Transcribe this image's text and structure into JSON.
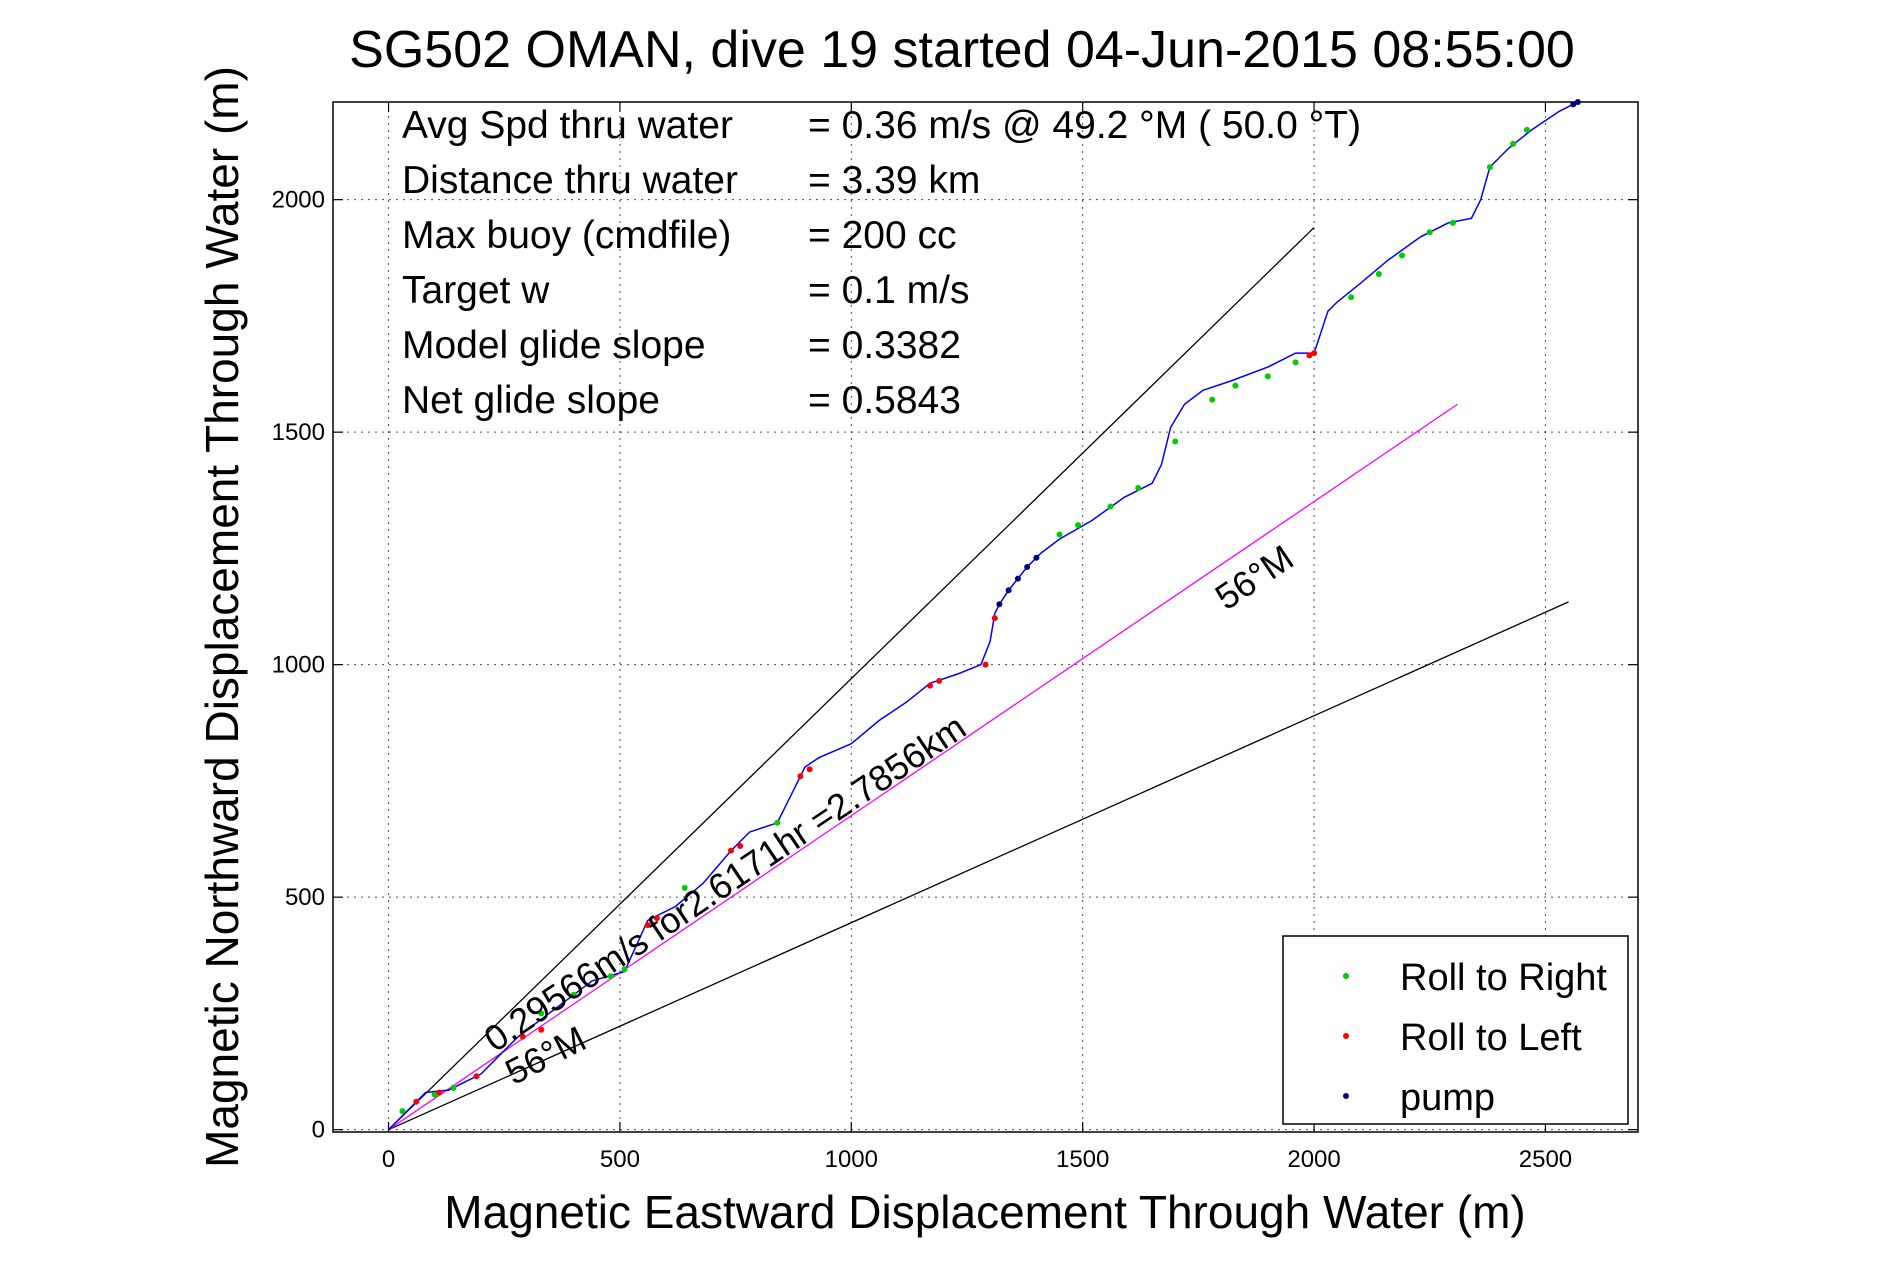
{
  "chart_data": {
    "type": "line",
    "title": "SG502 OMAN, dive 19 started 04-Jun-2015 08:55:00",
    "xlabel": "Magnetic Eastward Displacement Through Water (m)",
    "ylabel": "Magnetic Northward Displacement Through Water (m)",
    "xlim": [
      -120,
      2700
    ],
    "ylim": [
      -5,
      2210
    ],
    "xticks": [
      0,
      500,
      1000,
      1500,
      2000,
      2500
    ],
    "yticks": [
      0,
      500,
      1000,
      1500,
      2000
    ],
    "grid": true,
    "info_lines": [
      {
        "label": "Avg Spd thru water",
        "value": "=  0.36 m/s @  49.2 °M ( 50.0 °T)"
      },
      {
        "label": "Distance thru water",
        "value": "=  3.39 km"
      },
      {
        "label": "Max buoy (cmdfile)",
        "value": "= 200 cc"
      },
      {
        "label": "Target w",
        "value": "= 0.1 m/s"
      },
      {
        "label": "Model glide slope",
        "value": "= 0.3382"
      },
      {
        "label": "Net glide slope",
        "value": "= 0.5843"
      }
    ],
    "annotations": [
      {
        "text": "0.29566m/s for2.6171hr =2.7856km",
        "x": 230,
        "y": 165,
        "rotation_deg": 34
      },
      {
        "text": "56°M",
        "x": 270,
        "y": 95,
        "rotation_deg": 27
      },
      {
        "text": "56°M",
        "x": 1810,
        "y": 1115,
        "rotation_deg": 34
      }
    ],
    "guide_lines": [
      {
        "name": "upper-bound",
        "color": "#000000",
        "x": [
          0,
          2000
        ],
        "y": [
          0,
          1940
        ]
      },
      {
        "name": "lower-bound",
        "color": "#000000",
        "x": [
          0,
          2550
        ],
        "y": [
          0,
          1135
        ]
      },
      {
        "name": "current-heading",
        "color": "#ff00ff",
        "x": [
          0,
          2310
        ],
        "y": [
          0,
          1560
        ]
      }
    ],
    "track": {
      "color": "#0000ff",
      "x": [
        0,
        20,
        50,
        80,
        130,
        200,
        280,
        360,
        440,
        510,
        560,
        620,
        680,
        740,
        780,
        840,
        880,
        900,
        930,
        1000,
        1060,
        1120,
        1170,
        1230,
        1280,
        1300,
        1310,
        1320,
        1340,
        1380,
        1400,
        1410,
        1450,
        1520,
        1590,
        1650,
        1670,
        1690,
        1720,
        1760,
        1820,
        1900,
        1960,
        2000,
        2010,
        2030,
        2050,
        2100,
        2160,
        2230,
        2290,
        2340,
        2360,
        2380,
        2420,
        2470,
        2530,
        2570
      ],
      "y": [
        0,
        20,
        50,
        80,
        85,
        120,
        200,
        260,
        320,
        340,
        450,
        480,
        530,
        600,
        640,
        660,
        740,
        780,
        800,
        830,
        880,
        920,
        960,
        980,
        1000,
        1050,
        1110,
        1130,
        1160,
        1210,
        1230,
        1240,
        1270,
        1310,
        1360,
        1390,
        1430,
        1510,
        1560,
        1590,
        1610,
        1640,
        1670,
        1670,
        1700,
        1760,
        1780,
        1820,
        1870,
        1920,
        1950,
        1960,
        2000,
        2070,
        2110,
        2150,
        2190,
        2210
      ]
    },
    "series": [
      {
        "name": "Roll to Right",
        "color": "#00cc00",
        "x": [
          30,
          100,
          140,
          330,
          400,
          480,
          510,
          640,
          840,
          1450,
          1490,
          1560,
          1620,
          1700,
          1780,
          1830,
          1900,
          1960,
          2080,
          2140,
          2190,
          2250,
          2300,
          2380,
          2430,
          2460
        ],
        "y": [
          40,
          75,
          90,
          250,
          290,
          330,
          345,
          520,
          660,
          1280,
          1300,
          1340,
          1380,
          1480,
          1570,
          1600,
          1620,
          1650,
          1790,
          1840,
          1880,
          1930,
          1950,
          2070,
          2120,
          2150
        ]
      },
      {
        "name": "Roll to Left",
        "color": "#ff0000",
        "x": [
          60,
          110,
          190,
          290,
          330,
          560,
          580,
          740,
          760,
          890,
          910,
          1170,
          1190,
          1290,
          1310,
          1990,
          2000
        ],
        "y": [
          60,
          80,
          115,
          200,
          215,
          440,
          455,
          600,
          610,
          760,
          775,
          955,
          965,
          1000,
          1100,
          1665,
          1670
        ]
      },
      {
        "name": "pump",
        "color": "#000080",
        "x": [
          1320,
          1340,
          1360,
          1380,
          1400,
          2560,
          2570
        ],
        "y": [
          1130,
          1160,
          1185,
          1210,
          1230,
          2205,
          2210
        ]
      }
    ],
    "legend_position": "bottom-right"
  }
}
